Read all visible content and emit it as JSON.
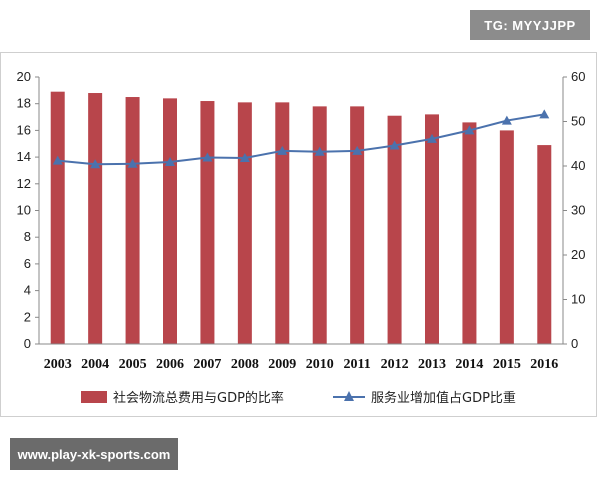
{
  "watermark_top": "TG: MYYJJPP",
  "watermark_bottom": "www.play-xk-sports.com",
  "colors": {
    "bar": "#b8454b",
    "bar_dark": "#9a3338",
    "line": "#4b72ad",
    "axis": "#888888"
  },
  "chart_data": {
    "type": "bar",
    "categories": [
      "2003",
      "2004",
      "2005",
      "2006",
      "2007",
      "2008",
      "2009",
      "2010",
      "2011",
      "2012",
      "2013",
      "2014",
      "2015",
      "2016"
    ],
    "series": [
      {
        "name": "社会物流总费用与GDP的比率",
        "type": "bar",
        "axis": "left",
        "values": [
          18.9,
          18.8,
          18.5,
          18.4,
          18.2,
          18.1,
          18.1,
          17.8,
          17.8,
          17.1,
          17.2,
          16.6,
          16.0,
          14.9
        ]
      },
      {
        "name": "服务业增加值占GDP比重",
        "type": "line",
        "marker": "triangle",
        "axis": "right",
        "values": [
          41.2,
          40.4,
          40.5,
          40.9,
          41.9,
          41.8,
          43.4,
          43.2,
          43.4,
          44.6,
          46.1,
          48.0,
          50.2,
          51.6
        ]
      }
    ],
    "y_left": {
      "ylim": [
        0,
        20
      ],
      "ticks": [
        "0",
        "2",
        "4",
        "6",
        "8",
        "10",
        "12",
        "14",
        "16",
        "18",
        "20"
      ]
    },
    "y_right": {
      "ylim": [
        0,
        60
      ],
      "ticks": [
        "0",
        "10",
        "20",
        "30",
        "40",
        "50",
        "60"
      ]
    },
    "grid": false,
    "legend_position": "bottom"
  }
}
